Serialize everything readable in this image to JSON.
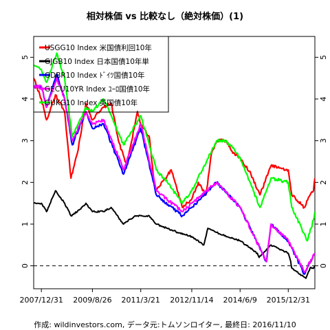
{
  "chart_data": {
    "type": "line",
    "title": "相対株価 vs 比較なし（絶対株価）(1)",
    "caption": "作成: wildinvestors.com, データ元:トムソンロイター, 最終日: 2016/11/10",
    "x_ticks": [
      "2007/12/31",
      "2009/8/26",
      "2011/3/21",
      "2012/11/14",
      "2014/6/9",
      "2015/12/31"
    ],
    "x_range": [
      "2007/10/01",
      "2016/11/10"
    ],
    "ylim": [
      -0.55,
      5.5
    ],
    "y_ticks": [
      0,
      1,
      2,
      3,
      4,
      5
    ],
    "reference_line": {
      "y": 0,
      "style": "dashed",
      "color": "#000000"
    },
    "legend": {
      "placement": "top-left"
    },
    "series": [
      {
        "name": "USGG10 Index 米国債利回10年",
        "color": "#ff0000",
        "points": [
          [
            "2007/10/01",
            4.5
          ],
          [
            "2007/12/31",
            4.0
          ],
          [
            "2008/03/01",
            3.5
          ],
          [
            "2008/06/15",
            4.1
          ],
          [
            "2008/10/01",
            3.7
          ],
          [
            "2008/12/15",
            2.1
          ],
          [
            "2009/03/01",
            2.7
          ],
          [
            "2009/06/10",
            3.9
          ],
          [
            "2009/08/26",
            3.5
          ],
          [
            "2009/12/31",
            3.8
          ],
          [
            "2010/04/05",
            3.9
          ],
          [
            "2010/06/30",
            3.0
          ],
          [
            "2010/10/05",
            2.4
          ],
          [
            "2011/02/10",
            3.7
          ],
          [
            "2011/03/21",
            3.4
          ],
          [
            "2011/06/30",
            3.1
          ],
          [
            "2011/08/15",
            2.2
          ],
          [
            "2011/09/22",
            1.8
          ],
          [
            "2012/03/15",
            2.3
          ],
          [
            "2012/07/25",
            1.4
          ],
          [
            "2012/11/14",
            1.6
          ],
          [
            "2013/01/31",
            2.0
          ],
          [
            "2013/05/01",
            1.7
          ],
          [
            "2013/07/05",
            2.7
          ],
          [
            "2013/09/05",
            3.0
          ],
          [
            "2013/12/31",
            3.0
          ],
          [
            "2014/03/15",
            2.7
          ],
          [
            "2014/06/09",
            2.6
          ],
          [
            "2014/10/15",
            2.2
          ],
          [
            "2015/01/30",
            1.7
          ],
          [
            "2015/06/10",
            2.4
          ],
          [
            "2015/12/31",
            2.3
          ],
          [
            "2016/02/11",
            1.7
          ],
          [
            "2016/07/08",
            1.4
          ],
          [
            "2016/09/15",
            1.7
          ],
          [
            "2016/10/25",
            1.8
          ],
          [
            "2016/11/10",
            2.1
          ]
        ]
      },
      {
        "name": "GJGB10 Index 日本国債10年単",
        "color": "#000000",
        "points": [
          [
            "2007/10/01",
            1.5
          ],
          [
            "2007/12/31",
            1.5
          ],
          [
            "2008/03/01",
            1.3
          ],
          [
            "2008/06/15",
            1.8
          ],
          [
            "2008/10/01",
            1.5
          ],
          [
            "2008/12/15",
            1.2
          ],
          [
            "2009/03/01",
            1.3
          ],
          [
            "2009/06/10",
            1.5
          ],
          [
            "2009/08/26",
            1.3
          ],
          [
            "2009/12/31",
            1.3
          ],
          [
            "2010/04/05",
            1.4
          ],
          [
            "2010/08/30",
            1.0
          ],
          [
            "2011/01/15",
            1.2
          ],
          [
            "2011/03/21",
            1.2
          ],
          [
            "2011/06/30",
            1.2
          ],
          [
            "2011/09/22",
            1.0
          ],
          [
            "2012/06/01",
            0.8
          ],
          [
            "2012/11/14",
            0.7
          ],
          [
            "2013/04/05",
            0.5
          ],
          [
            "2013/05/23",
            0.9
          ],
          [
            "2013/09/05",
            0.8
          ],
          [
            "2014/01/05",
            0.7
          ],
          [
            "2014/06/09",
            0.6
          ],
          [
            "2014/12/31",
            0.3
          ],
          [
            "2015/01/20",
            0.2
          ],
          [
            "2015/06/10",
            0.5
          ],
          [
            "2015/12/31",
            0.3
          ],
          [
            "2016/01/29",
            0.1
          ],
          [
            "2016/02/10",
            -0.05
          ],
          [
            "2016/07/27",
            -0.3
          ],
          [
            "2016/09/15",
            -0.05
          ],
          [
            "2016/10/25",
            -0.06
          ],
          [
            "2016/11/10",
            0.0
          ]
        ]
      },
      {
        "name": "GDBR10 Index ﾄﾞｲﾂ国債10年",
        "color": "#0000ff",
        "points": [
          [
            "2007/10/01",
            4.3
          ],
          [
            "2007/12/31",
            4.3
          ],
          [
            "2008/03/01",
            3.8
          ],
          [
            "2008/06/30",
            4.6
          ],
          [
            "2008/10/01",
            4.0
          ],
          [
            "2008/12/31",
            2.9
          ],
          [
            "2009/06/10",
            3.7
          ],
          [
            "2009/08/26",
            3.3
          ],
          [
            "2010/01/05",
            3.4
          ],
          [
            "2010/08/30",
            2.2
          ],
          [
            "2011/03/21",
            3.3
          ],
          [
            "2011/09/22",
            1.7
          ],
          [
            "2012/07/25",
            1.2
          ],
          [
            "2012/11/14",
            1.4
          ],
          [
            "2013/09/05",
            2.0
          ],
          [
            "2014/06/09",
            1.4
          ],
          [
            "2015/04/17",
            0.1
          ],
          [
            "2015/06/10",
            1.0
          ],
          [
            "2015/12/31",
            0.6
          ],
          [
            "2016/07/08",
            -0.2
          ],
          [
            "2016/11/10",
            0.3
          ]
        ]
      },
      {
        "name": "GECU10YR Index ﾕｰﾛ国債10年",
        "color": "#ff00ff",
        "points": [
          [
            "2007/10/01",
            4.3
          ],
          [
            "2007/12/31",
            4.3
          ],
          [
            "2008/03/01",
            3.8
          ],
          [
            "2008/06/30",
            4.5
          ],
          [
            "2008/10/01",
            4.0
          ],
          [
            "2008/12/31",
            3.0
          ],
          [
            "2009/06/10",
            3.7
          ],
          [
            "2009/08/26",
            3.4
          ],
          [
            "2010/01/05",
            3.5
          ],
          [
            "2010/08/30",
            2.3
          ],
          [
            "2011/03/21",
            3.4
          ],
          [
            "2011/09/22",
            1.8
          ],
          [
            "2012/07/25",
            1.3
          ],
          [
            "2012/11/14",
            1.5
          ],
          [
            "2013/09/05",
            2.0
          ],
          [
            "2014/06/09",
            1.4
          ],
          [
            "2015/04/17",
            0.1
          ],
          [
            "2015/06/10",
            1.0
          ],
          [
            "2015/12/31",
            0.6
          ],
          [
            "2016/07/08",
            -0.15
          ],
          [
            "2016/11/10",
            0.3
          ]
        ]
      },
      {
        "name": "GUKG10 Index 英国債10年",
        "color": "#00ff00",
        "points": [
          [
            "2007/10/01",
            4.8
          ],
          [
            "2007/12/31",
            4.7
          ],
          [
            "2008/03/01",
            4.4
          ],
          [
            "2008/06/30",
            5.1
          ],
          [
            "2008/10/01",
            4.5
          ],
          [
            "2008/12/31",
            3.1
          ],
          [
            "2009/06/10",
            3.8
          ],
          [
            "2009/08/26",
            3.7
          ],
          [
            "2010/01/05",
            4.0
          ],
          [
            "2010/08/30",
            2.9
          ],
          [
            "2011/03/21",
            3.6
          ],
          [
            "2011/09/22",
            2.3
          ],
          [
            "2012/01/31",
            2.0
          ],
          [
            "2012/07/25",
            1.5
          ],
          [
            "2012/11/14",
            1.8
          ],
          [
            "2013/09/05",
            3.0
          ],
          [
            "2013/12/31",
            3.0
          ],
          [
            "2014/06/09",
            2.6
          ],
          [
            "2015/01/30",
            1.4
          ],
          [
            "2015/06/10",
            2.1
          ],
          [
            "2015/12/31",
            2.0
          ],
          [
            "2016/02/11",
            1.4
          ],
          [
            "2016/08/12",
            0.6
          ],
          [
            "2016/10/25",
            1.1
          ],
          [
            "2016/11/10",
            1.3
          ]
        ]
      }
    ]
  }
}
